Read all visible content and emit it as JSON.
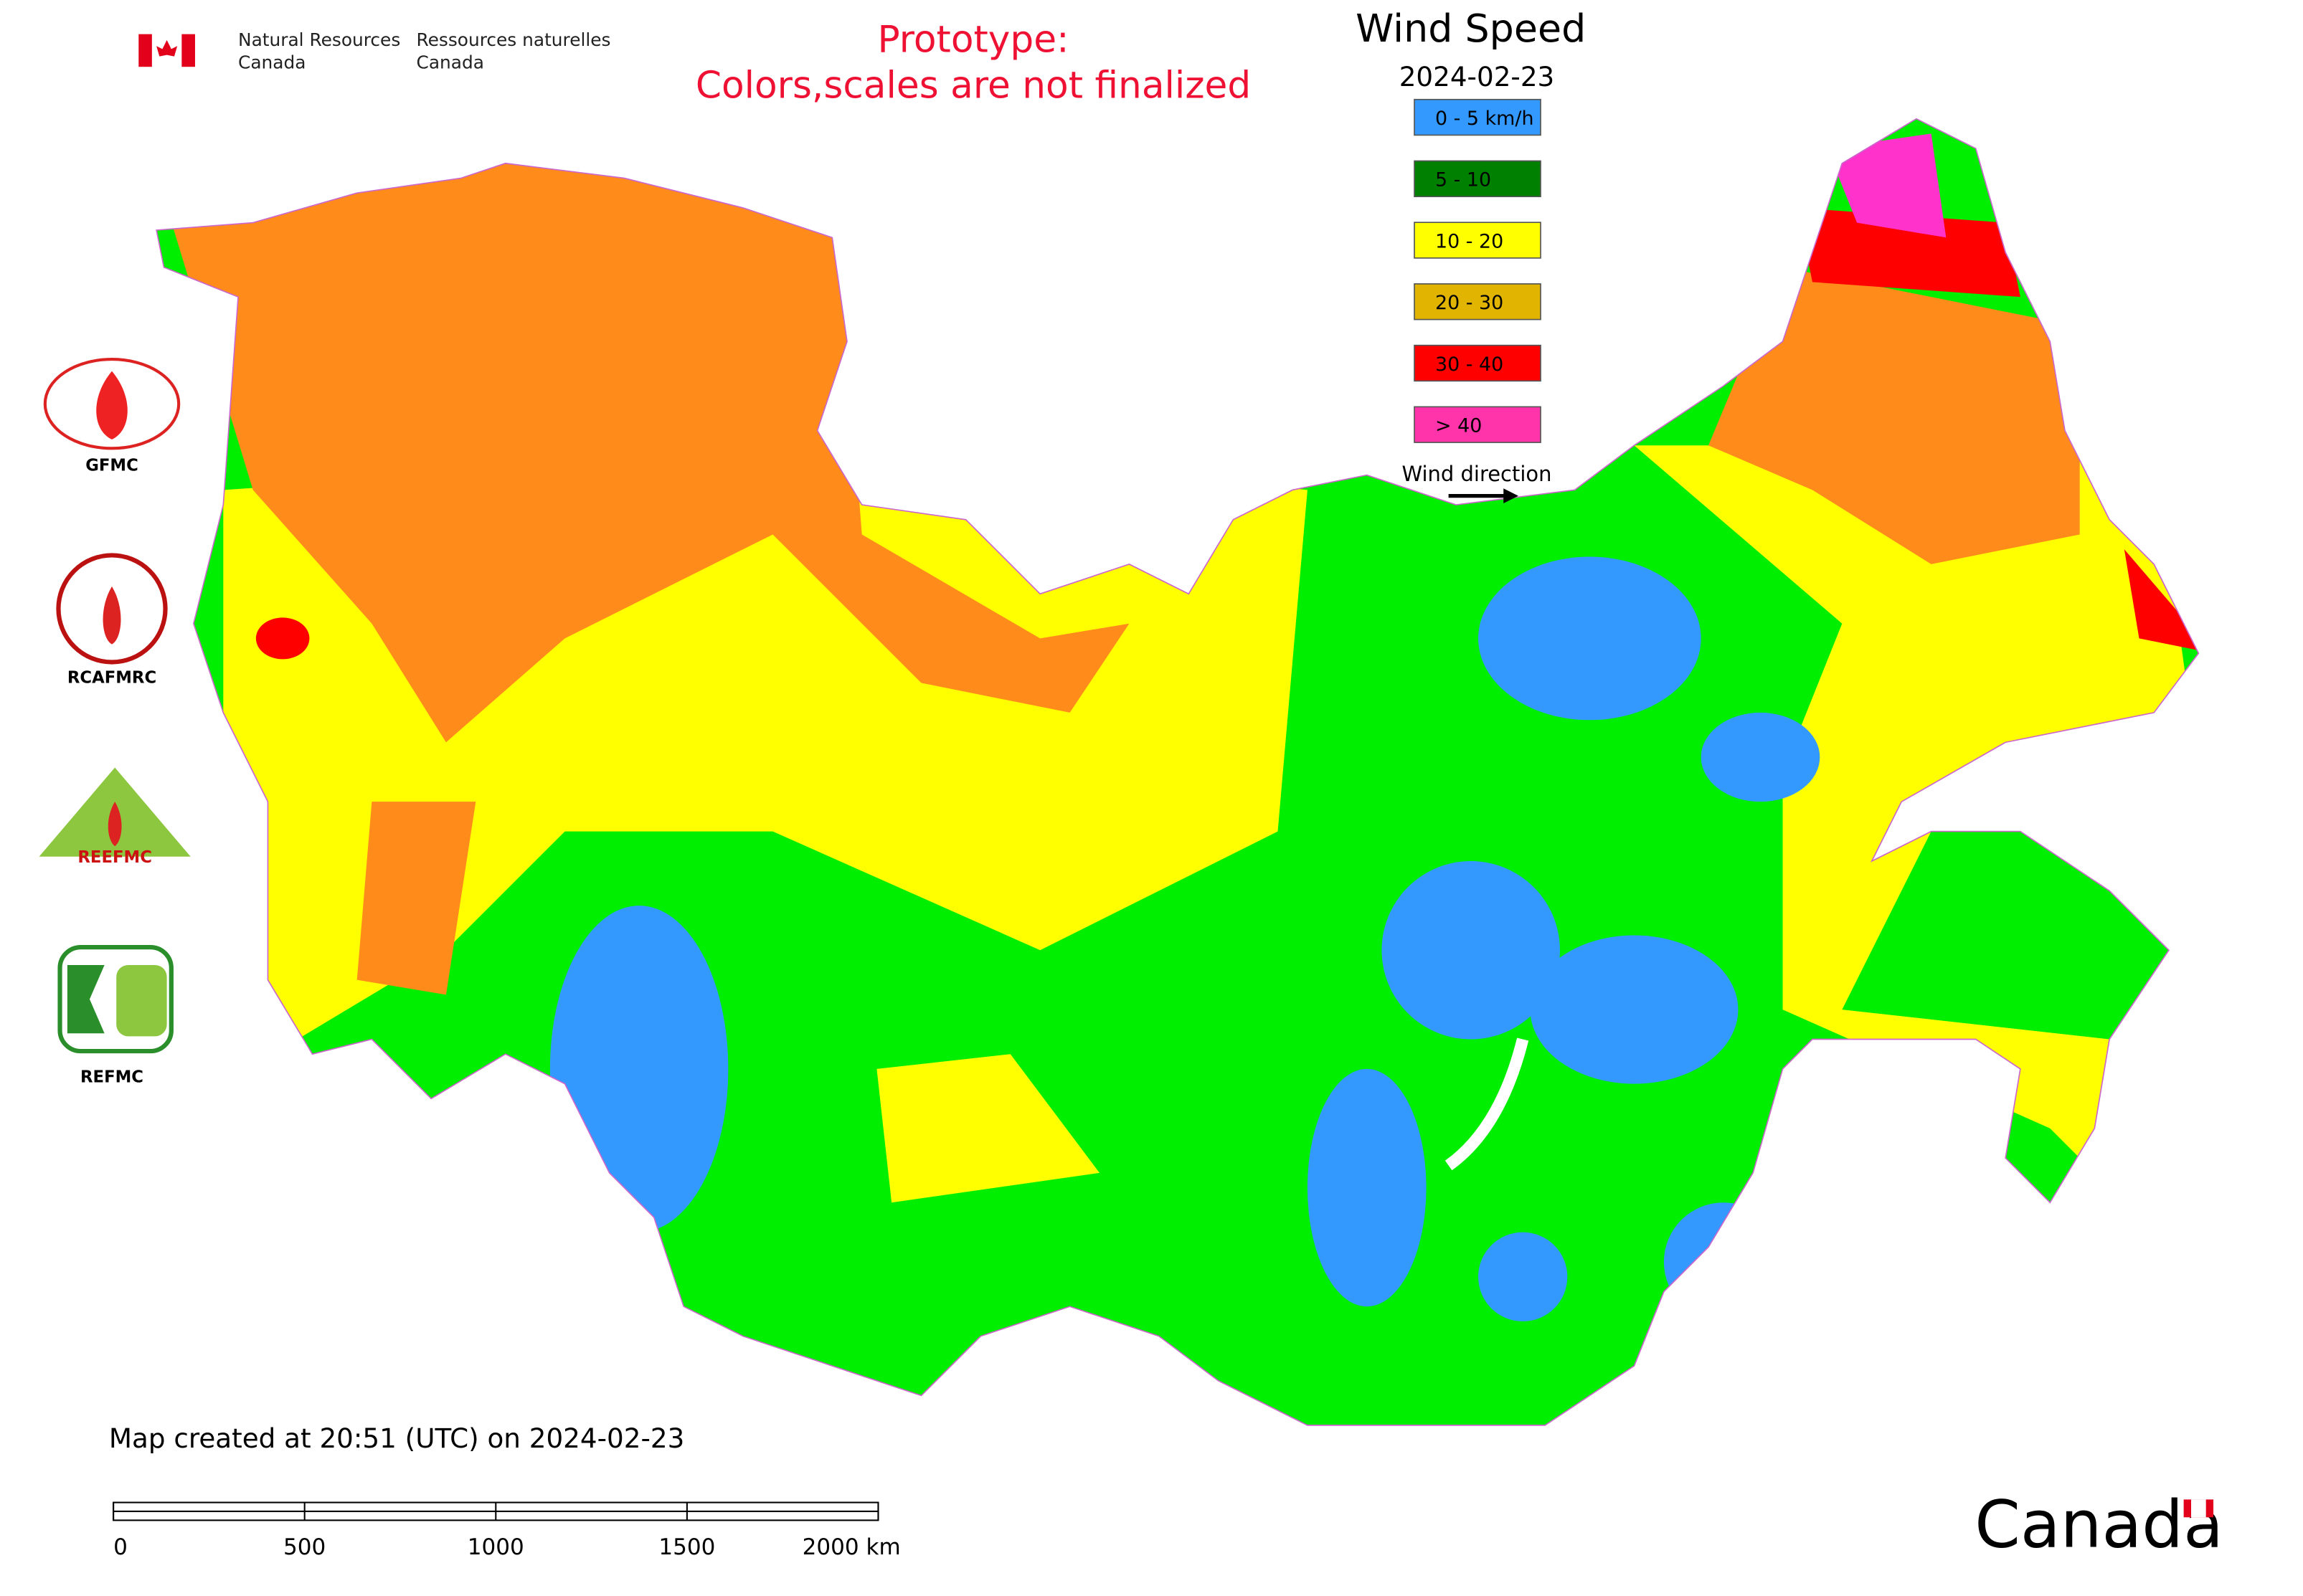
{
  "header": {
    "agency_en": [
      "Natural Resources",
      "Canada"
    ],
    "agency_fr": [
      "Ressources naturelles",
      "Canada"
    ]
  },
  "notice": [
    "Prototype:",
    "Colors,scales are not finalized"
  ],
  "legend": {
    "title": "Wind Speed",
    "date": "2024-02-23",
    "items": [
      {
        "label": "0 - 5 km/h",
        "color": "#3399ff"
      },
      {
        "label": "5 - 10",
        "color": "#008000"
      },
      {
        "label": "10 - 20",
        "color": "#ffff00"
      },
      {
        "label": "20 - 30",
        "color": "#e0b400"
      },
      {
        "label": "30 - 40",
        "color": "#ff0000"
      },
      {
        "label": "> 40",
        "color": "#ff33aa"
      }
    ],
    "direction": "Wind direction"
  },
  "side_logos": [
    {
      "label": "GFMC"
    },
    {
      "label": "RCAFMRC"
    },
    {
      "emblem": "REEFMC"
    },
    {
      "label": "REFMC"
    }
  ],
  "footer": {
    "created": "Map created at 20:51 (UTC) on 2024-02-23",
    "scale_labels": [
      "0",
      "500",
      "1000",
      "1500",
      "2000 km"
    ],
    "wordmark": "Canada"
  }
}
